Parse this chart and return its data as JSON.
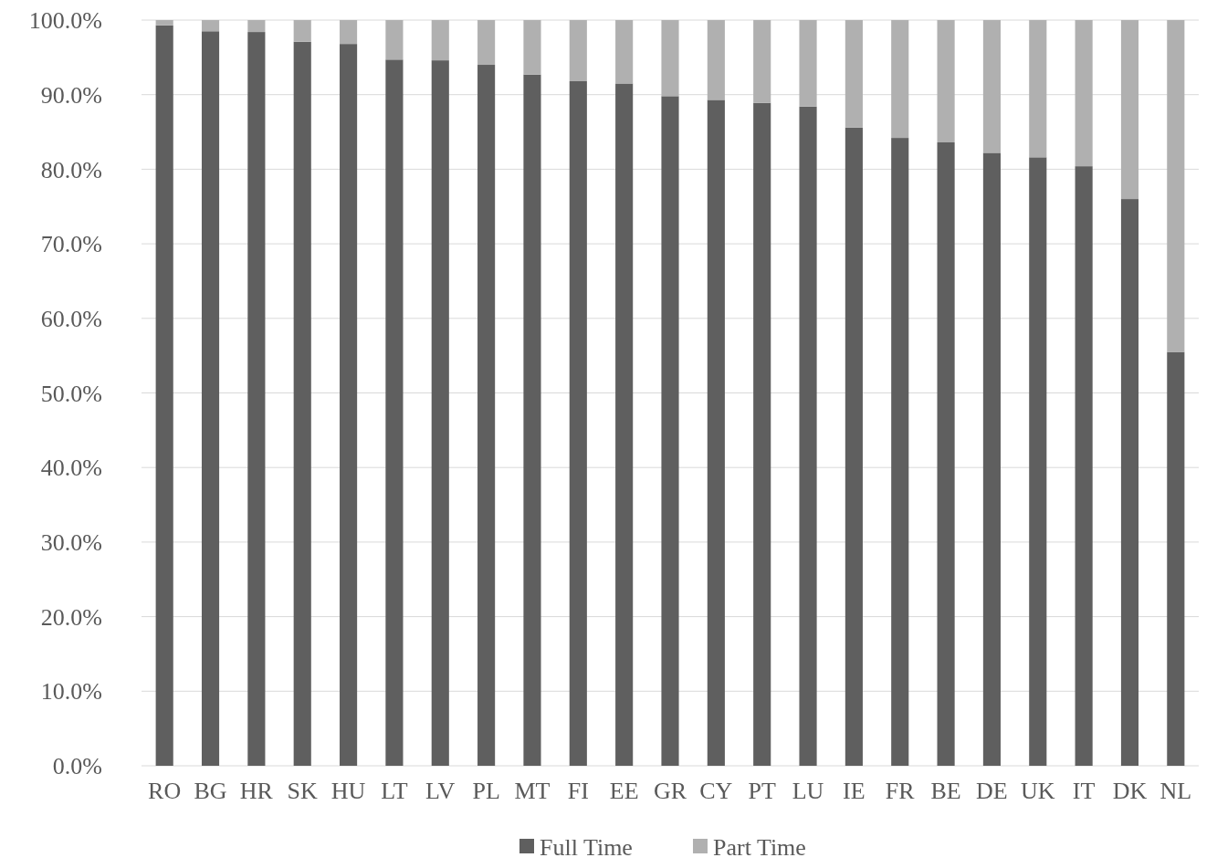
{
  "chart_data": {
    "type": "bar",
    "stacked": true,
    "categories": [
      "RO",
      "BG",
      "HR",
      "SK",
      "HU",
      "LT",
      "LV",
      "PL",
      "MT",
      "FI",
      "EE",
      "GR",
      "CY",
      "PT",
      "LU",
      "IE",
      "FR",
      "BE",
      "DE",
      "UK",
      "IT",
      "DK",
      "NL"
    ],
    "series": [
      {
        "name": "Full Time",
        "color": "#5f5f5f",
        "values": [
          99.3,
          98.5,
          98.4,
          97.1,
          96.8,
          94.7,
          94.6,
          94.0,
          92.7,
          91.8,
          91.5,
          89.8,
          89.3,
          88.9,
          88.4,
          85.6,
          84.2,
          83.6,
          82.2,
          81.6,
          80.4,
          76.0,
          55.5
        ]
      },
      {
        "name": "Part Time",
        "color": "#b0b0b0",
        "values": [
          0.7,
          1.5,
          1.6,
          2.9,
          3.2,
          5.3,
          5.4,
          6.0,
          7.3,
          8.2,
          8.5,
          10.2,
          10.7,
          11.1,
          11.6,
          14.4,
          15.8,
          16.4,
          17.8,
          18.4,
          19.6,
          24.0,
          44.5
        ]
      }
    ],
    "ylim": [
      0,
      100
    ],
    "yticks": [
      {
        "value": 0,
        "label": "0.0%"
      },
      {
        "value": 10,
        "label": "10.0%"
      },
      {
        "value": 20,
        "label": "20.0%"
      },
      {
        "value": 30,
        "label": "30.0%"
      },
      {
        "value": 40,
        "label": "40.0%"
      },
      {
        "value": 50,
        "label": "50.0%"
      },
      {
        "value": 60,
        "label": "60.0%"
      },
      {
        "value": 70,
        "label": "70.0%"
      },
      {
        "value": 80,
        "label": "80.0%"
      },
      {
        "value": 90,
        "label": "90.0%"
      },
      {
        "value": 100,
        "label": "100.0%"
      }
    ],
    "grid": "y",
    "legend": "bottom"
  }
}
